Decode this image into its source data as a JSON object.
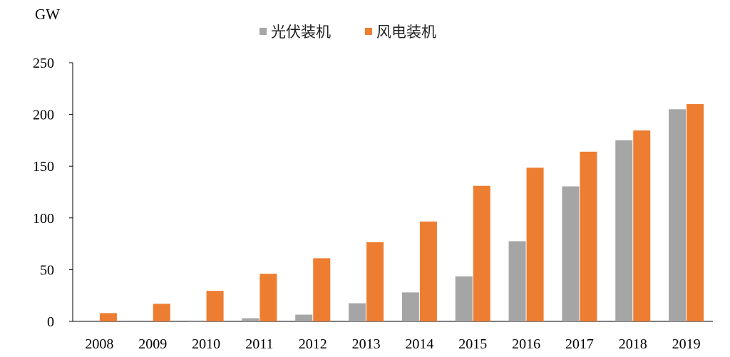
{
  "chart_data": {
    "type": "bar",
    "title": "",
    "xlabel": "",
    "ylabel": "GW",
    "ylim": [
      0,
      250
    ],
    "yticks": [
      0,
      50,
      100,
      150,
      200,
      250
    ],
    "grid": false,
    "legend_position": "top-center",
    "categories": [
      "2008",
      "2009",
      "2010",
      "2011",
      "2012",
      "2013",
      "2014",
      "2015",
      "2016",
      "2017",
      "2018",
      "2019"
    ],
    "series": [
      {
        "name": "光伏装机",
        "color": "#a5a5a5",
        "values": [
          0,
          0,
          0.8,
          3,
          6.5,
          17.5,
          28,
          43.5,
          77.5,
          130.5,
          175,
          205
        ]
      },
      {
        "name": "风电装机",
        "color": "#ed7d31",
        "values": [
          8,
          17,
          29.5,
          46,
          61,
          76.5,
          96.5,
          131,
          148.5,
          164,
          184.5,
          210
        ]
      }
    ]
  }
}
